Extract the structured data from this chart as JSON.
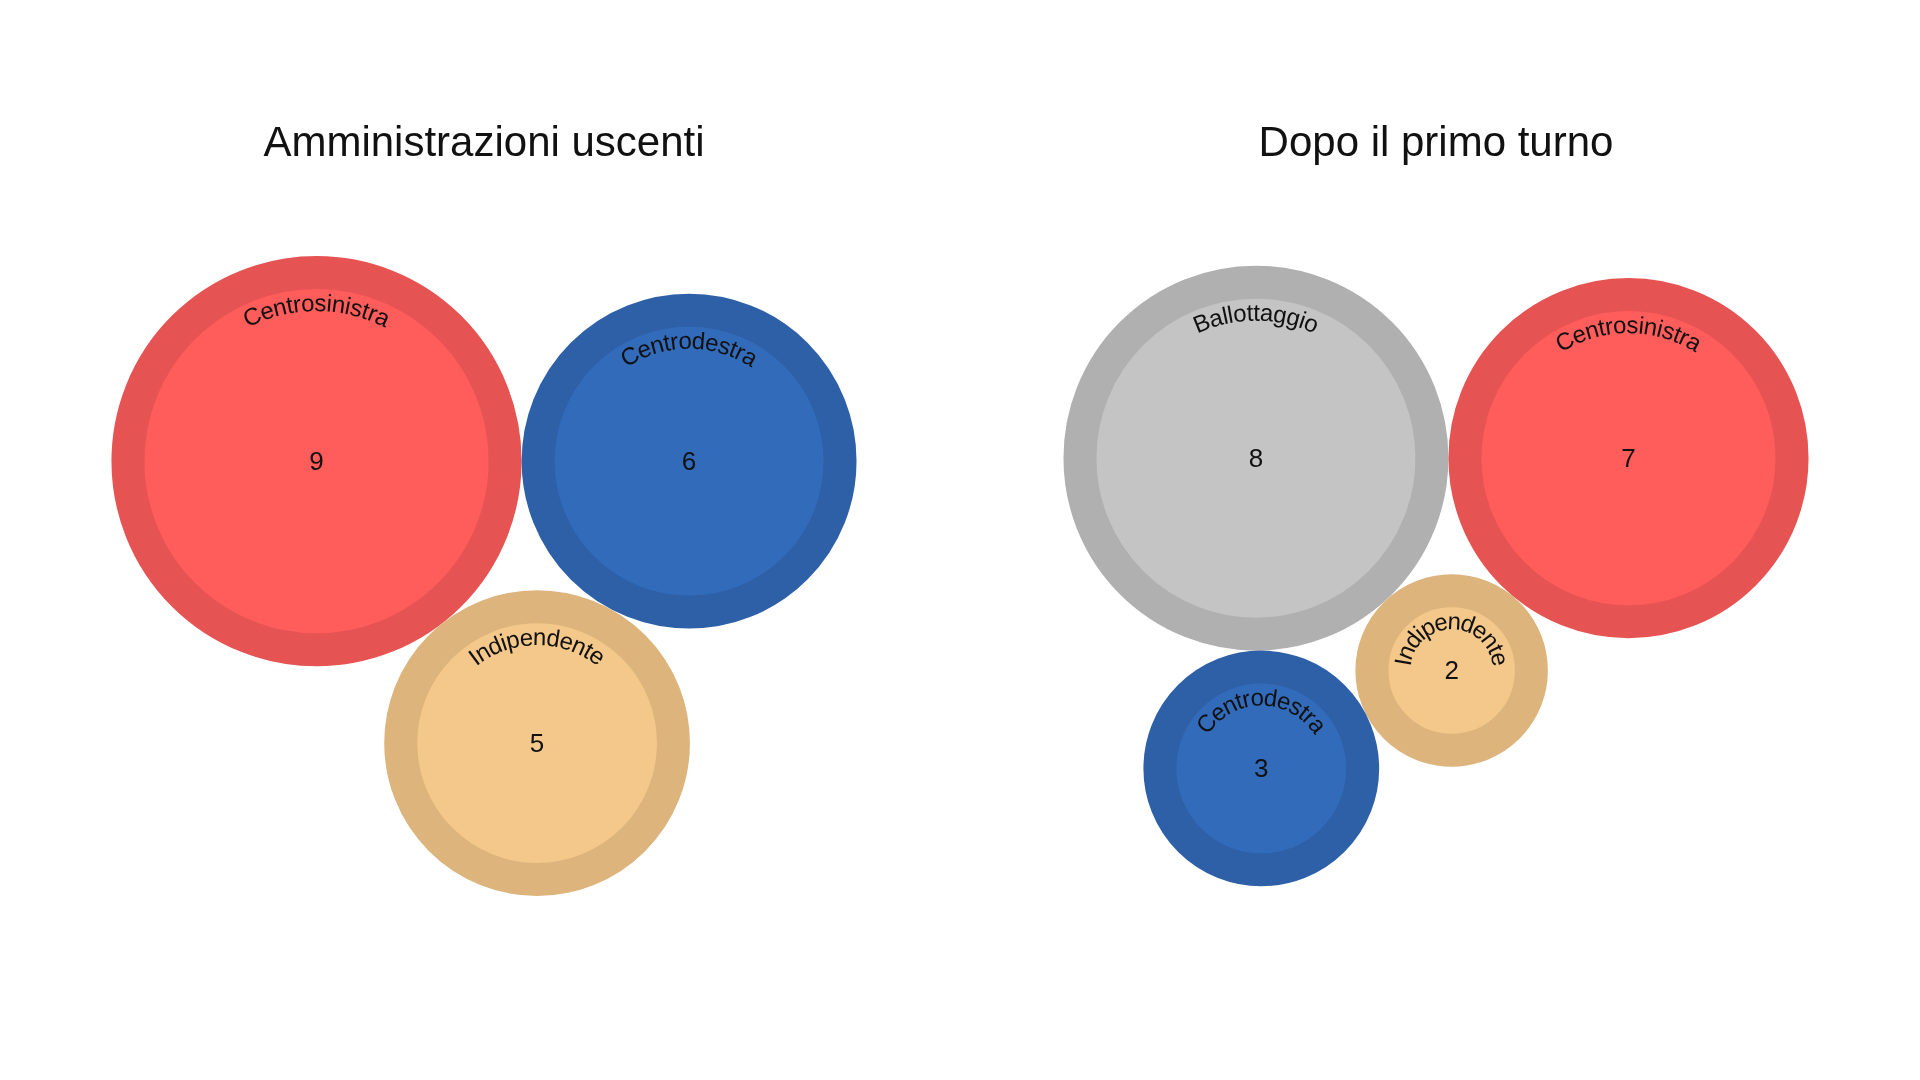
{
  "chart_data": [
    {
      "type": "other",
      "title": "Amministrazioni uscenti",
      "categories": [
        "Centrosinistra",
        "Centrodestra",
        "Indipendente"
      ],
      "values": [
        9,
        6,
        5
      ],
      "colors": [
        "#ff5c5c",
        "#336bbb",
        "#f4c88a"
      ],
      "data_labels": true
    },
    {
      "type": "other",
      "title": "Dopo il primo turno",
      "categories": [
        "Ballottaggio",
        "Centrosinistra",
        "Indipendente",
        "Centrodestra"
      ],
      "values": [
        8,
        7,
        2,
        3
      ],
      "colors": [
        "#c4c4c4",
        "#ff5c5c",
        "#f4c88a",
        "#336bbb"
      ],
      "data_labels": true
    }
  ]
}
